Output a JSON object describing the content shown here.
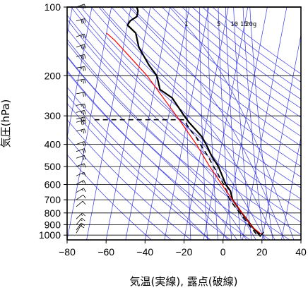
{
  "chart_data": {
    "type": "line",
    "title": "",
    "xlabel": "気温(実線), 露点(破線)",
    "ylabel": "気圧(hPa)",
    "x_unit": "°C",
    "xlim": [
      -80,
      40
    ],
    "ylim": [
      1050,
      100
    ],
    "y_scale": "log",
    "x_ticks": [
      "−80",
      "−60",
      "−40",
      "−20",
      "0",
      "20",
      "40"
    ],
    "y_ticks": [
      "100",
      "200",
      "300",
      "400",
      "500",
      "600",
      "700",
      "800",
      "900",
      "1000"
    ],
    "mixing_ratio_labels": [
      "1",
      "5",
      "10",
      "15",
      "20g"
    ],
    "colors": {
      "temperature": "#000000",
      "dewpoint": "#000000",
      "parcel": "#ff0000",
      "background_lines": "#3a3ae6",
      "wind_barbs": "#000000"
    },
    "series": [
      {
        "values": [
          {
            "p": 990,
            "t": 18.5
          },
          {
            "p": 960,
            "t": 16
          },
          {
            "p": 925,
            "t": 14
          },
          {
            "p": 850,
            "t": 10
          },
          {
            "p": 800,
            "t": 7
          },
          {
            "p": 700,
            "t": 1
          },
          {
            "p": 640,
            "t": -1
          },
          {
            "p": 600,
            "t": -4
          },
          {
            "p": 500,
            "t": -9.5
          },
          {
            "p": 450,
            "t": -14
          },
          {
            "p": 400,
            "t": -18
          },
          {
            "p": 370,
            "t": -21
          },
          {
            "p": 350,
            "t": -24
          },
          {
            "p": 320,
            "t": -29
          },
          {
            "p": 300,
            "t": -32
          },
          {
            "p": 250,
            "t": -40
          },
          {
            "p": 230,
            "t": -47
          },
          {
            "p": 200,
            "t": -50
          },
          {
            "p": 180,
            "t": -55
          },
          {
            "p": 150,
            "t": -62
          },
          {
            "p": 130,
            "t": -65
          },
          {
            "p": 120,
            "t": -70
          },
          {
            "p": 115,
            "t": -69
          },
          {
            "p": 110,
            "t": -66
          },
          {
            "p": 104,
            "t": -66
          },
          {
            "p": 100,
            "t": -67
          }
        ]
      },
      {
        "dashed": true,
        "values": [
          {
            "p": 990,
            "t": 16.5
          },
          {
            "p": 960,
            "t": 15
          },
          {
            "p": 925,
            "t": 13
          },
          {
            "p": 850,
            "t": 9
          },
          {
            "p": 800,
            "t": 6
          },
          {
            "p": 700,
            "t": -0.5
          },
          {
            "p": 640,
            "t": -3
          },
          {
            "p": 600,
            "t": -5
          },
          {
            "p": 500,
            "t": -12
          },
          {
            "p": 450,
            "t": -16
          },
          {
            "p": 400,
            "t": -21
          },
          {
            "p": 370,
            "t": -24
          },
          {
            "p": 350,
            "t": -27
          },
          {
            "p": 312,
            "t": -32
          },
          {
            "p": 312,
            "t": -78
          }
        ]
      },
      {
        "values": [
          {
            "p": 990,
            "t": 19
          },
          {
            "p": 925,
            "t": 14
          },
          {
            "p": 850,
            "t": 10
          },
          {
            "p": 700,
            "t": 1
          },
          {
            "p": 600,
            "t": -6
          },
          {
            "p": 500,
            "t": -14
          },
          {
            "p": 400,
            "t": -23
          },
          {
            "p": 300,
            "t": -36
          },
          {
            "p": 200,
            "t": -55
          },
          {
            "p": 140,
            "t": -75
          },
          {
            "p": 130,
            "t": -80
          }
        ]
      }
    ],
    "wind_barbs": [
      {
        "p": 100,
        "dir": 250,
        "kt": 25
      },
      {
        "p": 115,
        "dir": 255,
        "kt": 30
      },
      {
        "p": 135,
        "dir": 250,
        "kt": 25
      },
      {
        "p": 150,
        "dir": 250,
        "kt": 30
      },
      {
        "p": 165,
        "dir": 255,
        "kt": 30
      },
      {
        "p": 185,
        "dir": 260,
        "kt": 25
      },
      {
        "p": 210,
        "dir": 260,
        "kt": 25
      },
      {
        "p": 240,
        "dir": 260,
        "kt": 20
      },
      {
        "p": 270,
        "dir": 260,
        "kt": 25
      },
      {
        "p": 290,
        "dir": 255,
        "kt": 25
      },
      {
        "p": 310,
        "dir": 255,
        "kt": 30
      },
      {
        "p": 320,
        "dir": 255,
        "kt": 30
      },
      {
        "p": 350,
        "dir": 255,
        "kt": 25
      },
      {
        "p": 400,
        "dir": 250,
        "kt": 20
      },
      {
        "p": 430,
        "dir": 250,
        "kt": 20
      },
      {
        "p": 460,
        "dir": 250,
        "kt": 20
      },
      {
        "p": 500,
        "dir": 250,
        "kt": 15
      },
      {
        "p": 550,
        "dir": 245,
        "kt": 15
      },
      {
        "p": 600,
        "dir": 240,
        "kt": 15
      },
      {
        "p": 650,
        "dir": 240,
        "kt": 15
      },
      {
        "p": 700,
        "dir": 235,
        "kt": 10
      },
      {
        "p": 750,
        "dir": 230,
        "kt": 10
      },
      {
        "p": 850,
        "dir": 225,
        "kt": 15
      },
      {
        "p": 900,
        "dir": 220,
        "kt": 15
      },
      {
        "p": 950,
        "dir": 215,
        "kt": 15
      },
      {
        "p": 980,
        "dir": 210,
        "kt": 10
      }
    ]
  }
}
